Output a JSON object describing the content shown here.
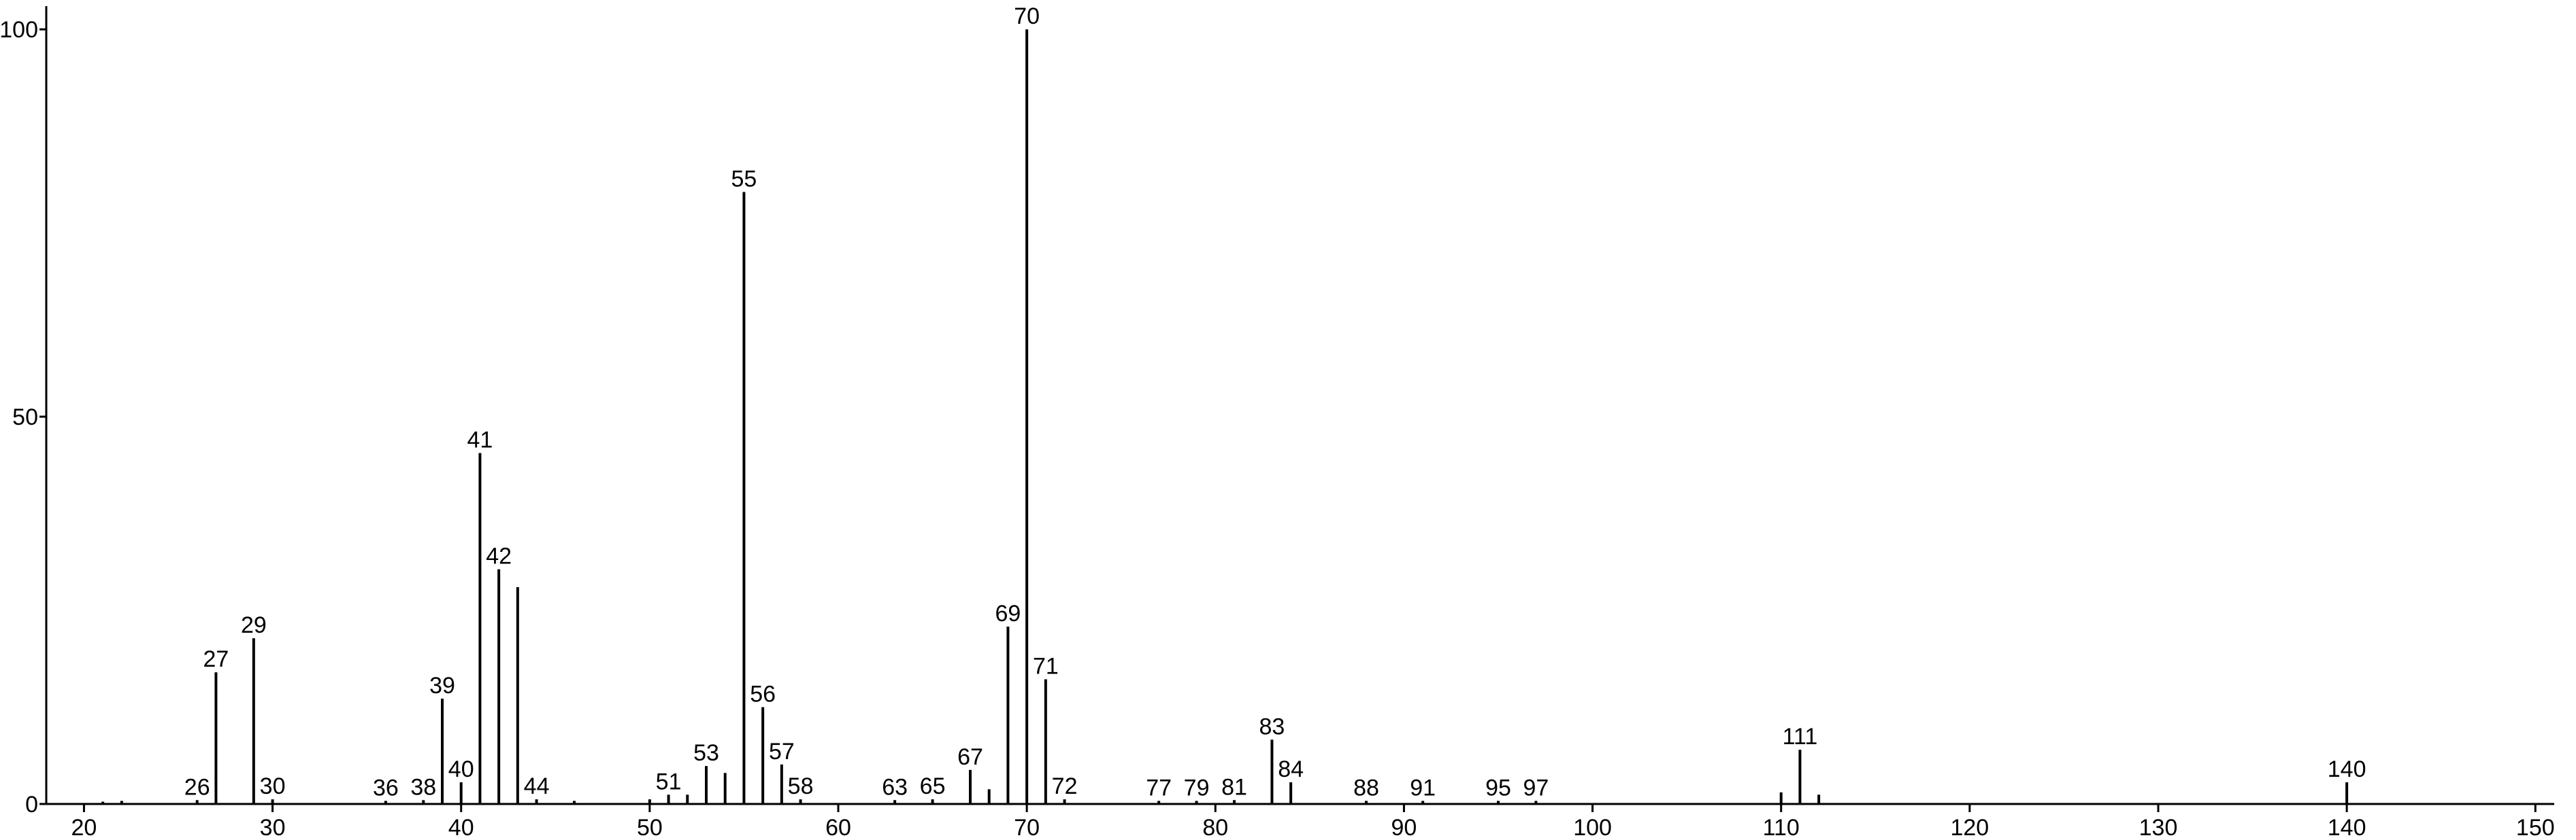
{
  "chart_data": {
    "type": "stem",
    "x": [
      21,
      22,
      26,
      27,
      29,
      30,
      36,
      38,
      39,
      40,
      41,
      42,
      43,
      44,
      46,
      50,
      51,
      52,
      53,
      54,
      55,
      56,
      57,
      58,
      63,
      65,
      67,
      68,
      69,
      70,
      71,
      72,
      77,
      79,
      81,
      83,
      84,
      88,
      91,
      95,
      97,
      110,
      111,
      112,
      140
    ],
    "values": [
      0.3,
      0.4,
      0.5,
      17,
      21.4,
      0.6,
      0.4,
      0.5,
      13.6,
      2.8,
      45.3,
      30.3,
      28,
      0.6,
      0.4,
      0.6,
      1.2,
      1.2,
      4.9,
      4,
      79,
      12.5,
      5.1,
      0.6,
      0.5,
      0.6,
      4.4,
      1.9,
      22.9,
      100,
      16.1,
      0.6,
      0.4,
      0.4,
      0.5,
      8.3,
      2.8,
      0.4,
      0.4,
      0.4,
      0.4,
      1.5,
      7,
      1.2,
      2.8
    ],
    "annotations": [
      26,
      27,
      29,
      30,
      36,
      38,
      39,
      40,
      41,
      42,
      44,
      51,
      53,
      55,
      56,
      57,
      58,
      63,
      65,
      67,
      69,
      70,
      71,
      72,
      77,
      79,
      81,
      83,
      84,
      88,
      91,
      95,
      97,
      111,
      140
    ],
    "color": "#000000",
    "xlim": [
      18,
      151
    ],
    "xticks": [
      20,
      30,
      40,
      50,
      60,
      70,
      80,
      90,
      100,
      110,
      120,
      130,
      140,
      150
    ],
    "ylim": [
      0,
      103
    ],
    "yticks": [
      0,
      50,
      100
    ]
  }
}
